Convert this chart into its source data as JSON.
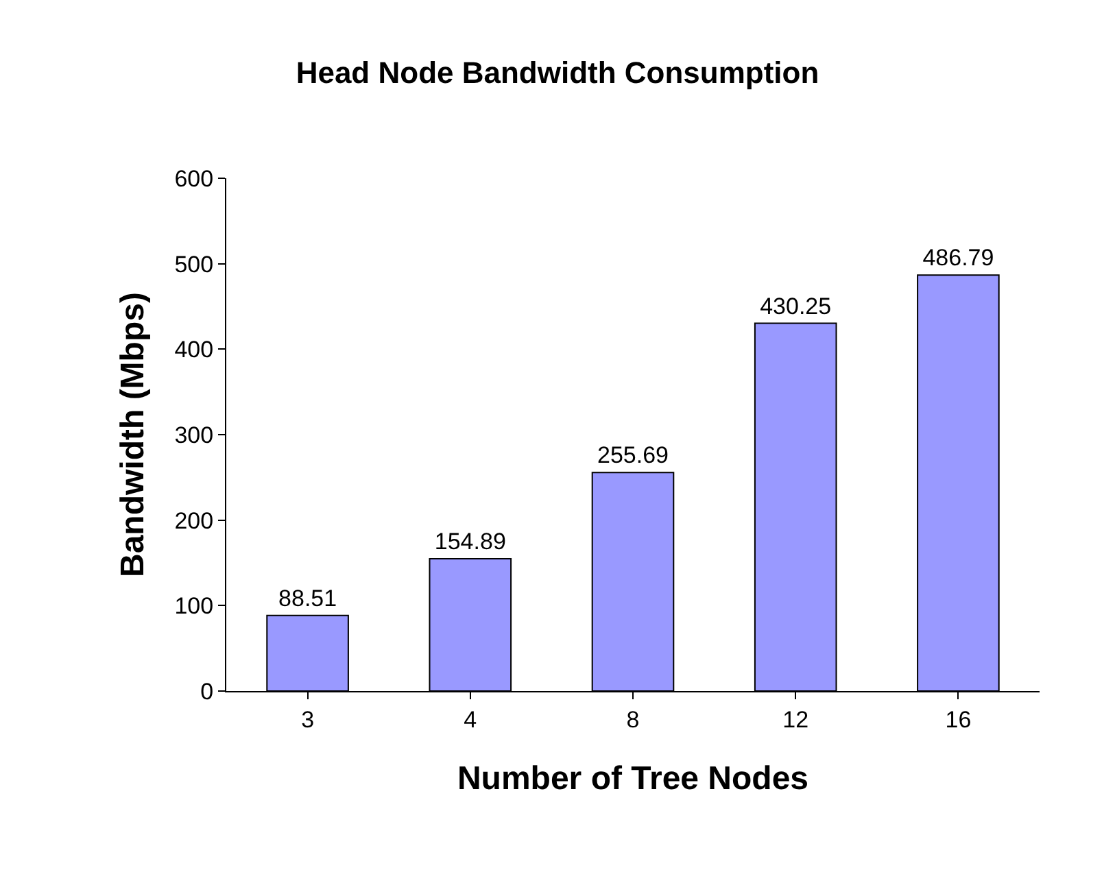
{
  "chart_data": {
    "type": "bar",
    "title": "Head Node Bandwidth Consumption",
    "xlabel": "Number of Tree Nodes",
    "ylabel": "Bandwidth (Mbps)",
    "categories": [
      "3",
      "4",
      "8",
      "12",
      "16"
    ],
    "values": [
      88.51,
      154.89,
      255.69,
      430.25,
      486.79
    ],
    "color": "#9999ff",
    "ylim": [
      0,
      600
    ],
    "yticks": [
      0,
      100,
      200,
      300,
      400,
      500,
      600
    ],
    "data_labels": true
  }
}
